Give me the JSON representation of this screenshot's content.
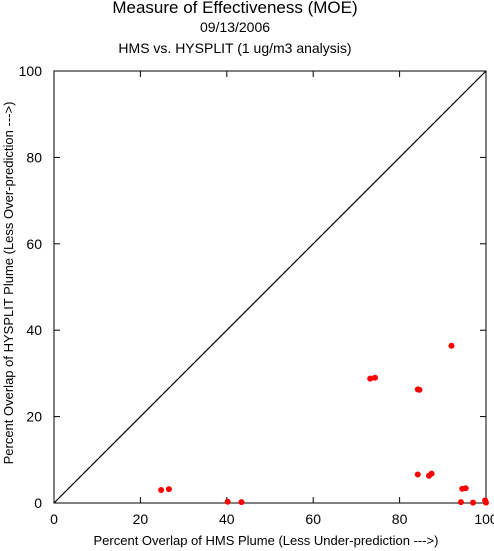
{
  "chart_data": {
    "type": "scatter",
    "title": "Measure of Effectiveness (MOE)",
    "date": "09/13/2006",
    "subtitle": "HMS vs. HYSPLIT  (1 ug/m3 analysis)",
    "xlabel": "Percent Overlap of HMS Plume (Less Under-prediction --->)",
    "ylabel": "Percent Overlap of HYSPLIT Plume (Less Over-prediction --->)",
    "xlim": [
      0,
      100
    ],
    "ylim": [
      0,
      100
    ],
    "xticks": [
      0,
      20,
      40,
      60,
      80,
      100
    ],
    "yticks": [
      0,
      20,
      40,
      60,
      80,
      100
    ],
    "grid": false,
    "reference_line": "y = x",
    "point_color": "#ff0000",
    "points": [
      {
        "x": 24.8,
        "y": 3.0
      },
      {
        "x": 26.6,
        "y": 3.2
      },
      {
        "x": 40.2,
        "y": 0.3
      },
      {
        "x": 43.4,
        "y": 0.2
      },
      {
        "x": 73.2,
        "y": 28.8
      },
      {
        "x": 74.3,
        "y": 29.0
      },
      {
        "x": 84.2,
        "y": 26.3
      },
      {
        "x": 84.6,
        "y": 26.2
      },
      {
        "x": 84.2,
        "y": 6.6
      },
      {
        "x": 86.8,
        "y": 6.3
      },
      {
        "x": 87.4,
        "y": 6.8
      },
      {
        "x": 92.0,
        "y": 36.4
      },
      {
        "x": 94.5,
        "y": 3.3
      },
      {
        "x": 95.3,
        "y": 3.4
      },
      {
        "x": 94.2,
        "y": 0.2
      },
      {
        "x": 97.0,
        "y": 0.1
      },
      {
        "x": 99.8,
        "y": 0.6
      },
      {
        "x": 100.0,
        "y": 0.1
      }
    ]
  }
}
